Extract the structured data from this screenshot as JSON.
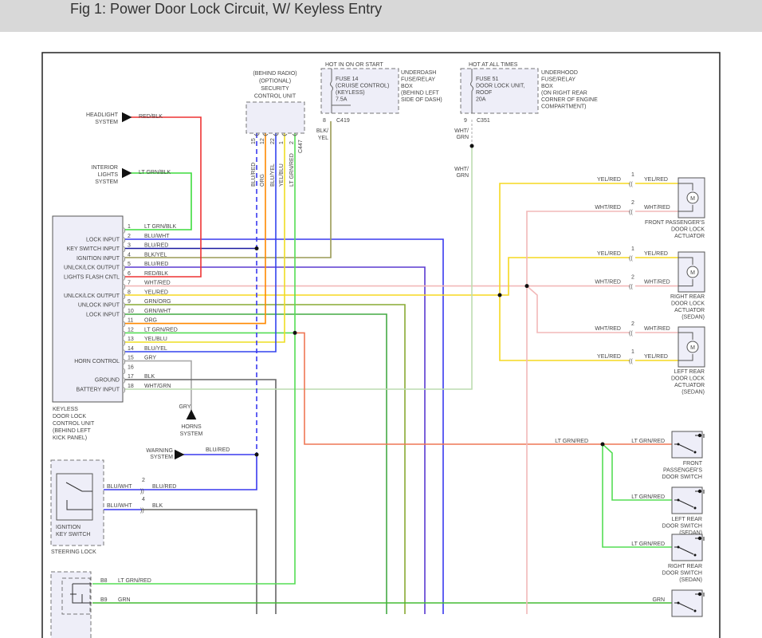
{
  "title": "Fig 1: Power Door Lock Circuit, W/ Keyless Entry",
  "keyless_unit": {
    "name_lines": [
      "KEYLESS",
      "DOOR LOCK",
      "CONTROL UNIT",
      "(BEHIND LEFT",
      "KICK PANEL)"
    ],
    "pins": [
      {
        "num": "1",
        "input": "",
        "wire": "LT GRN/BLK",
        "color": "#3ddc3d"
      },
      {
        "num": "2",
        "input": "LOCK INPUT",
        "wire": "BLU/WHT",
        "color": "#3a3aee"
      },
      {
        "num": "3",
        "input": "KEY SWITCH INPUT",
        "wire": "BLU/RED",
        "color": "#1a1aa0"
      },
      {
        "num": "4",
        "input": "IGNITION INPUT",
        "wire": "BLK/YEL",
        "color": "#9a9a55"
      },
      {
        "num": "5",
        "input": "UNLCK/LCK OUTPUT",
        "wire": "BLU/RED",
        "color": "#5a3ad0"
      },
      {
        "num": "6",
        "input": "LIGHTS FLASH CNTL",
        "wire": "RED/BLK",
        "color": "#ee3333"
      },
      {
        "num": "7",
        "input": "",
        "wire": "WHT/RED",
        "color": "#f2b8b8"
      },
      {
        "num": "8",
        "input": "UNLCK/LCK OUTPUT",
        "wire": "YEL/RED",
        "color": "#f5d820"
      },
      {
        "num": "9",
        "input": "UNLOCK INPUT",
        "wire": "GRN/ORG",
        "color": "#88aa33"
      },
      {
        "num": "10",
        "input": "LOCK INPUT",
        "wire": "GRN/WHT",
        "color": "#44aa44"
      },
      {
        "num": "11",
        "input": "",
        "wire": "ORG",
        "color": "#ff8800"
      },
      {
        "num": "12",
        "input": "",
        "wire": "LT GRN/RED",
        "color": "#55dd55"
      },
      {
        "num": "13",
        "input": "",
        "wire": "YEL/BLU",
        "color": "#eedd22"
      },
      {
        "num": "14",
        "input": "",
        "wire": "BLU/YEL",
        "color": "#3344ee"
      },
      {
        "num": "15",
        "input": "HORN CONTROL",
        "wire": "GRY",
        "color": "#aaaaaa"
      },
      {
        "num": "16",
        "input": "",
        "wire": "",
        "color": ""
      },
      {
        "num": "17",
        "input": "GROUND",
        "wire": "BLK",
        "color": "#666666"
      },
      {
        "num": "18",
        "input": "BATTERY INPUT",
        "wire": "WHT/GRN",
        "color": "#bcdcb0"
      }
    ]
  },
  "security_unit": {
    "lines": [
      "(BEHIND RADIO)",
      "(OPTIONAL)",
      "SECURITY",
      "CONTROL UNIT"
    ],
    "connector": "C447",
    "pins": [
      {
        "num": "15",
        "wire": "BLU/RED"
      },
      {
        "num": "12",
        "wire": "ORG"
      },
      {
        "num": "22",
        "wire": "BLU/YEL"
      },
      {
        "num": "1",
        "wire": "YEL/BLU"
      },
      {
        "num": "2",
        "wire": "LT GRN/RED"
      }
    ]
  },
  "fuse14": {
    "header": "HOT IN ON OR START",
    "lines": [
      "FUSE 14",
      "(CRUISE CONTROL)",
      "(KEYLESS)",
      "7.5A"
    ],
    "box_lines": [
      "UNDERDASH",
      "FUSE/RELAY",
      "BOX",
      "(BEHIND LEFT",
      "SIDE OF DASH)"
    ],
    "pin": "8",
    "connector": "C419",
    "wire_lines": [
      "BLK/",
      "YEL"
    ]
  },
  "fuse51": {
    "header": "HOT AT ALL TIMES",
    "lines": [
      "FUSE 51",
      "DOOR LOCK UNIT,",
      "ROOF",
      "20A"
    ],
    "box_lines": [
      "UNDERHOOD",
      "FUSE/RELAY",
      "BOX",
      "(ON RIGHT REAR",
      "CORNER OF ENGINE",
      "COMPARTMENT)"
    ],
    "pin": "9",
    "connector": "C351",
    "wire1_lines": [
      "WHT/",
      "GRN"
    ],
    "wire2_lines": [
      "WHT/",
      "GRN"
    ]
  },
  "loads": {
    "headlight": {
      "lines": [
        "HEADLIGHT",
        "SYSTEM"
      ],
      "wire": "RED/BLK"
    },
    "interior": {
      "lines": [
        "INTERIOR",
        "LIGHTS",
        "SYSTEM"
      ],
      "wire": "LT GRN/BLK"
    },
    "horns": {
      "lines": [
        "HORNS",
        "SYSTEM"
      ],
      "wire": "GRY"
    },
    "warning": {
      "lines": [
        "WARNING",
        "SYSTEM"
      ],
      "wire": "BLU/RED"
    }
  },
  "motor_symbol": "M",
  "actuators": [
    {
      "lines": [
        "FRONT PASSENGER'S",
        "DOOR LOCK",
        "ACTUATOR"
      ],
      "pins": [
        {
          "num": "1",
          "wire_in": "YEL/RED",
          "wire_out": "YEL/RED"
        },
        {
          "num": "2",
          "wire_in": "WHT/RED",
          "wire_out": "WHT/RED"
        }
      ]
    },
    {
      "lines": [
        "RIGHT REAR",
        "DOOR LOCK",
        "ACTUATOR",
        "(SEDAN)"
      ],
      "pins": [
        {
          "num": "1",
          "wire_in": "YEL/RED",
          "wire_out": "YEL/RED"
        },
        {
          "num": "2",
          "wire_in": "WHT/RED",
          "wire_out": "WHT/RED"
        }
      ]
    },
    {
      "lines": [
        "LEFT REAR",
        "DOOR LOCK",
        "ACTUATOR",
        "(SEDAN)"
      ],
      "pins": [
        {
          "num": "2",
          "wire_in": "WHT/RED",
          "wire_out": "WHT/RED"
        },
        {
          "num": "1",
          "wire_in": "YEL/RED",
          "wire_out": "YEL/RED"
        }
      ]
    }
  ],
  "switch_feed_wire": "LT GRN/RED",
  "switches": [
    {
      "lines": [
        "FRONT",
        "PASSENGER'S",
        "DOOR SWITCH"
      ],
      "wire": "LT GRN/RED"
    },
    {
      "lines": [
        "LEFT REAR",
        "DOOR SWITCH",
        "(SEDAN)"
      ],
      "wire": "LT GRN/RED"
    },
    {
      "lines": [
        "RIGHT REAR",
        "DOOR SWITCH",
        "(SEDAN)"
      ],
      "wire": "LT GRN/RED"
    },
    {
      "lines": [],
      "wire": "GRN"
    }
  ],
  "ignition": {
    "lines": [
      "IGNITION",
      "KEY SWITCH"
    ],
    "steering_lock": "STEERING LOCK",
    "pins": [
      {
        "num": "2",
        "wire_in": "BLU/WHT",
        "wire_out": "BLU/RED"
      },
      {
        "num": "4",
        "wire_in": "BLU/WHT",
        "wire_out": "BLK"
      }
    ]
  },
  "bottom_module": {
    "pins": [
      {
        "num": "B8",
        "wire": "LT GRN/RED"
      },
      {
        "num": "B9",
        "wire": "GRN"
      }
    ]
  }
}
